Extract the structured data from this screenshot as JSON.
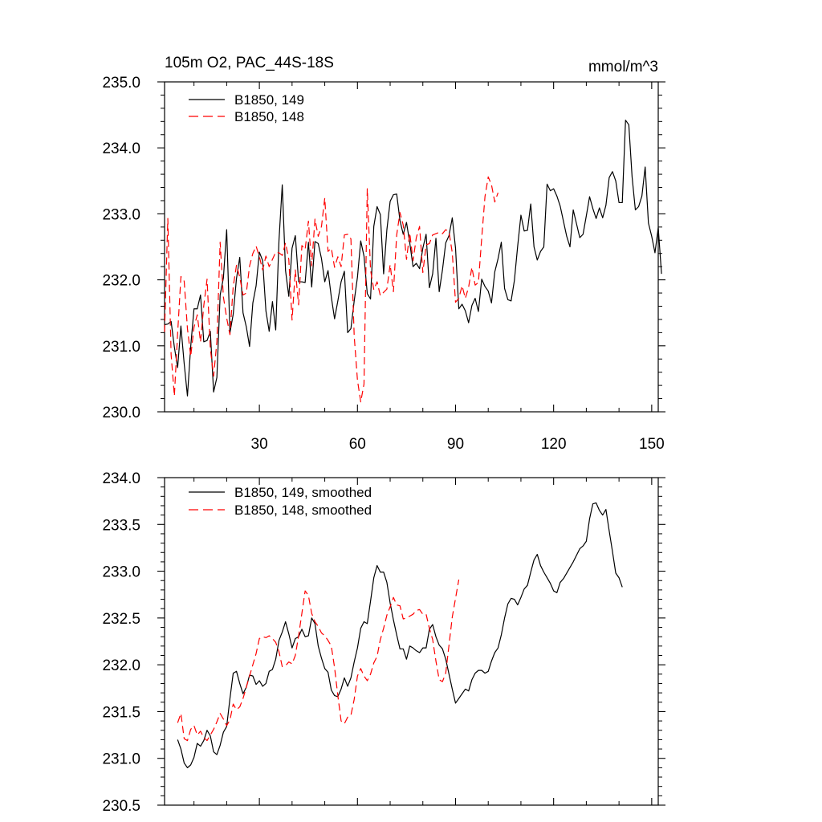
{
  "chart_data": [
    {
      "type": "line",
      "title": "105m O2, PAC_44S-18S",
      "units": "mmol/m^3",
      "xlim": [
        1,
        152
      ],
      "ylim": [
        230.0,
        235.0
      ],
      "xticks": [
        30,
        60,
        90,
        120,
        150
      ],
      "xtick_labels": [
        "30",
        "60",
        "90",
        "120",
        "150"
      ],
      "yticks": [
        230.0,
        231.0,
        232.0,
        233.0,
        234.0,
        235.0
      ],
      "ytick_labels": [
        "230.0",
        "231.0",
        "232.0",
        "233.0",
        "234.0",
        "235.0"
      ],
      "legend_position": "top-left",
      "series": [
        {
          "name": "B1850, 149",
          "color": "#000000",
          "dash": "solid",
          "x_start": 1,
          "values": [
            231.32,
            231.33,
            231.37,
            230.98,
            230.67,
            231.3,
            230.73,
            230.24,
            230.99,
            231.56,
            231.56,
            231.77,
            231.06,
            231.08,
            231.22,
            230.3,
            230.52,
            231.77,
            232.03,
            232.76,
            231.2,
            231.48,
            232.02,
            232.34,
            231.5,
            231.29,
            230.99,
            231.65,
            231.91,
            232.42,
            232.29,
            231.53,
            231.22,
            231.67,
            231.24,
            232.6,
            233.44,
            232.14,
            231.75,
            232.48,
            232.67,
            231.97,
            231.97,
            231.96,
            232.57,
            231.89,
            232.58,
            232.55,
            232.32,
            231.97,
            232.14,
            231.74,
            231.41,
            231.68,
            231.97,
            232.13,
            231.2,
            231.26,
            231.68,
            232.04,
            232.59,
            232.36,
            231.79,
            231.71,
            232.81,
            233.11,
            232.99,
            232.09,
            232.76,
            233.19,
            233.29,
            233.3,
            232.9,
            232.69,
            232.87,
            232.56,
            232.2,
            232.25,
            232.17,
            232.48,
            232.69,
            231.88,
            232.09,
            232.63,
            231.82,
            232.15,
            232.56,
            232.67,
            232.94,
            232.48,
            231.56,
            231.63,
            231.53,
            231.35,
            231.61,
            231.72,
            231.52,
            232.01,
            231.9,
            231.83,
            231.65,
            232.12,
            232.32,
            232.57,
            231.87,
            231.7,
            231.68,
            231.99,
            232.51,
            232.98,
            232.74,
            232.75,
            233.15,
            232.5,
            232.3,
            232.43,
            232.5,
            233.45,
            233.35,
            233.38,
            233.27,
            233.12,
            232.89,
            232.66,
            232.5,
            233.06,
            232.85,
            232.64,
            232.69,
            232.97,
            233.26,
            233.08,
            232.93,
            233.09,
            232.94,
            233.13,
            233.55,
            233.64,
            233.5,
            233.17,
            233.17,
            234.42,
            234.35,
            233.56,
            233.06,
            233.11,
            233.27,
            233.71,
            232.86,
            232.66,
            232.41,
            232.79,
            232.09
          ]
        },
        {
          "name": "B1850, 148",
          "color": "#ff0000",
          "dash": "dashed",
          "x_start": 1,
          "values": [
            231.21,
            232.93,
            230.87,
            230.24,
            231.19,
            232.05,
            231.98,
            231.26,
            230.84,
            231.28,
            231.47,
            231.06,
            231.61,
            232.01,
            230.96,
            230.54,
            231.06,
            232.57,
            231.74,
            231.42,
            231.17,
            231.9,
            232.22,
            232.04,
            231.77,
            231.8,
            232.21,
            232.4,
            232.51,
            232.35,
            232.15,
            232.36,
            232.2,
            232.31,
            232.42,
            232.41,
            232.37,
            232.56,
            232.31,
            231.39,
            232.15,
            231.62,
            232.52,
            232.46,
            232.89,
            232.21,
            232.92,
            232.66,
            232.81,
            233.24,
            232.43,
            232.48,
            232.19,
            232.35,
            232.2,
            232.68,
            232.69,
            232.62,
            231.15,
            230.48,
            230.15,
            230.42,
            233.38,
            232.15,
            231.85,
            231.97,
            231.76,
            231.81,
            231.86,
            232.23,
            231.82,
            232.68,
            233.02,
            232.83,
            232.31,
            232.71,
            232.29,
            232.64,
            232.81,
            232.11,
            232.53,
            232.55,
            232.68,
            232.7,
            232.72,
            232.7,
            232.76,
            232.73,
            232.41,
            231.66,
            231.72,
            231.91,
            231.72,
            231.89,
            232.19,
            231.92,
            231.96,
            232.63,
            233.26,
            233.56,
            233.44,
            233.18,
            233.32
          ]
        }
      ]
    },
    {
      "type": "line",
      "xlim": [
        1,
        152
      ],
      "ylim": [
        230.5,
        234.0
      ],
      "xticks": [
        30,
        60,
        90,
        120,
        150
      ],
      "yticks": [
        230.5,
        231.0,
        231.5,
        232.0,
        232.5,
        233.0,
        233.5,
        234.0
      ],
      "ytick_labels": [
        "230.5",
        "231.0",
        "231.5",
        "232.0",
        "232.5",
        "233.0",
        "233.5",
        "234.0"
      ],
      "legend_position": "top-left",
      "series": [
        {
          "name": "B1850, 149, smoothed",
          "color": "#000000",
          "dash": "solid",
          "x_start": 5,
          "values": [
            231.2,
            231.1,
            230.95,
            230.9,
            230.93,
            231.01,
            231.16,
            231.13,
            231.19,
            231.3,
            231.24,
            231.07,
            231.04,
            231.14,
            231.28,
            231.34,
            231.64,
            231.91,
            231.93,
            231.8,
            231.69,
            231.76,
            231.89,
            231.88,
            231.79,
            231.83,
            231.77,
            231.8,
            231.93,
            231.95,
            232.06,
            232.26,
            232.35,
            232.46,
            232.33,
            232.18,
            232.28,
            232.3,
            232.38,
            232.3,
            232.31,
            232.5,
            232.44,
            232.2,
            232.07,
            231.96,
            231.92,
            231.73,
            231.67,
            231.66,
            231.74,
            231.86,
            231.77,
            231.86,
            232.03,
            232.18,
            232.39,
            232.46,
            232.44,
            232.68,
            232.93,
            233.06,
            232.99,
            232.99,
            232.88,
            232.66,
            232.48,
            232.32,
            232.17,
            232.17,
            232.06,
            232.2,
            232.18,
            232.15,
            232.13,
            232.18,
            232.18,
            232.38,
            232.43,
            232.3,
            232.21,
            232.17,
            232.06,
            231.9,
            231.74,
            231.59,
            231.64,
            231.69,
            231.74,
            231.72,
            231.84,
            231.91,
            231.94,
            231.94,
            231.91,
            231.93,
            232.04,
            232.13,
            232.18,
            232.32,
            232.5,
            232.65,
            232.71,
            232.7,
            232.64,
            232.72,
            232.81,
            232.85,
            232.99,
            233.12,
            233.18,
            233.06,
            232.99,
            232.93,
            232.87,
            232.79,
            232.77,
            232.88,
            232.92,
            232.98,
            233.04,
            233.1,
            233.17,
            233.24,
            233.27,
            233.32,
            233.56,
            233.72,
            233.73,
            233.65,
            233.6,
            233.66,
            233.43,
            233.21,
            232.98,
            232.93,
            232.83
          ]
        },
        {
          "name": "B1850, 148, smoothed",
          "color": "#ff0000",
          "dash": "dashed",
          "x_start": 5,
          "values": [
            231.38,
            231.48,
            231.21,
            231.19,
            231.31,
            231.35,
            231.25,
            231.29,
            231.22,
            231.19,
            231.25,
            231.31,
            231.39,
            231.48,
            231.42,
            231.35,
            231.41,
            231.58,
            231.52,
            231.55,
            231.64,
            231.76,
            231.88,
            232.0,
            232.12,
            232.28,
            232.3,
            232.29,
            232.31,
            232.28,
            232.24,
            232.14,
            231.98,
            231.99,
            232.03,
            232.01,
            232.1,
            232.31,
            232.55,
            232.79,
            232.74,
            232.55,
            232.46,
            232.41,
            232.34,
            232.31,
            232.26,
            232.2,
            231.97,
            231.67,
            231.4,
            231.37,
            231.44,
            231.46,
            231.63,
            231.88,
            231.96,
            231.88,
            231.83,
            231.9,
            232.02,
            232.09,
            232.27,
            232.39,
            232.53,
            232.62,
            232.72,
            232.64,
            232.63,
            232.49,
            232.5,
            232.52,
            232.54,
            232.58,
            232.59,
            232.54,
            232.54,
            232.39,
            232.27,
            232.04,
            231.84,
            231.82,
            231.91,
            232.21,
            232.51,
            232.71,
            232.91
          ]
        }
      ]
    }
  ]
}
